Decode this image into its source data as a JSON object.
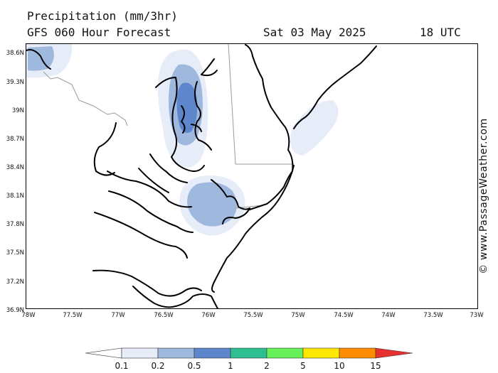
{
  "header": {
    "title": "Precipitation (mm/3hr)",
    "subtitle": "GFS 060 Hour Forecast",
    "date": "Sat 03 May 2025",
    "time": "18 UTC"
  },
  "credit": "© www.PassageWeather.com",
  "axes": {
    "lat_labels": [
      "38.6N",
      "39.3N",
      "39N",
      "38.7N",
      "38.4N",
      "38.1N",
      "37.8N",
      "37.5N",
      "37.2N",
      "36.9N"
    ],
    "lon_labels": [
      "78W",
      "77.5W",
      "77W",
      "76.5W",
      "76W",
      "75.5W",
      "75W",
      "74.5W",
      "74W",
      "73.5W",
      "73W"
    ]
  },
  "legend": {
    "labels": [
      "0.1",
      "0.2",
      "0.5",
      "1",
      "2",
      "5",
      "10",
      "15"
    ],
    "colors": [
      "#ffffff",
      "#e6ecf8",
      "#9fb8de",
      "#5e86cc",
      "#2dbf8f",
      "#66f05a",
      "#ffe800",
      "#ff8c00",
      "#e83030"
    ]
  },
  "colors": {
    "precip_light": "#e6ecf8",
    "precip_medium": "#9fb8de",
    "precip_heavy": "#5e86cc",
    "coastline": "#000000",
    "borders": "#999999"
  }
}
